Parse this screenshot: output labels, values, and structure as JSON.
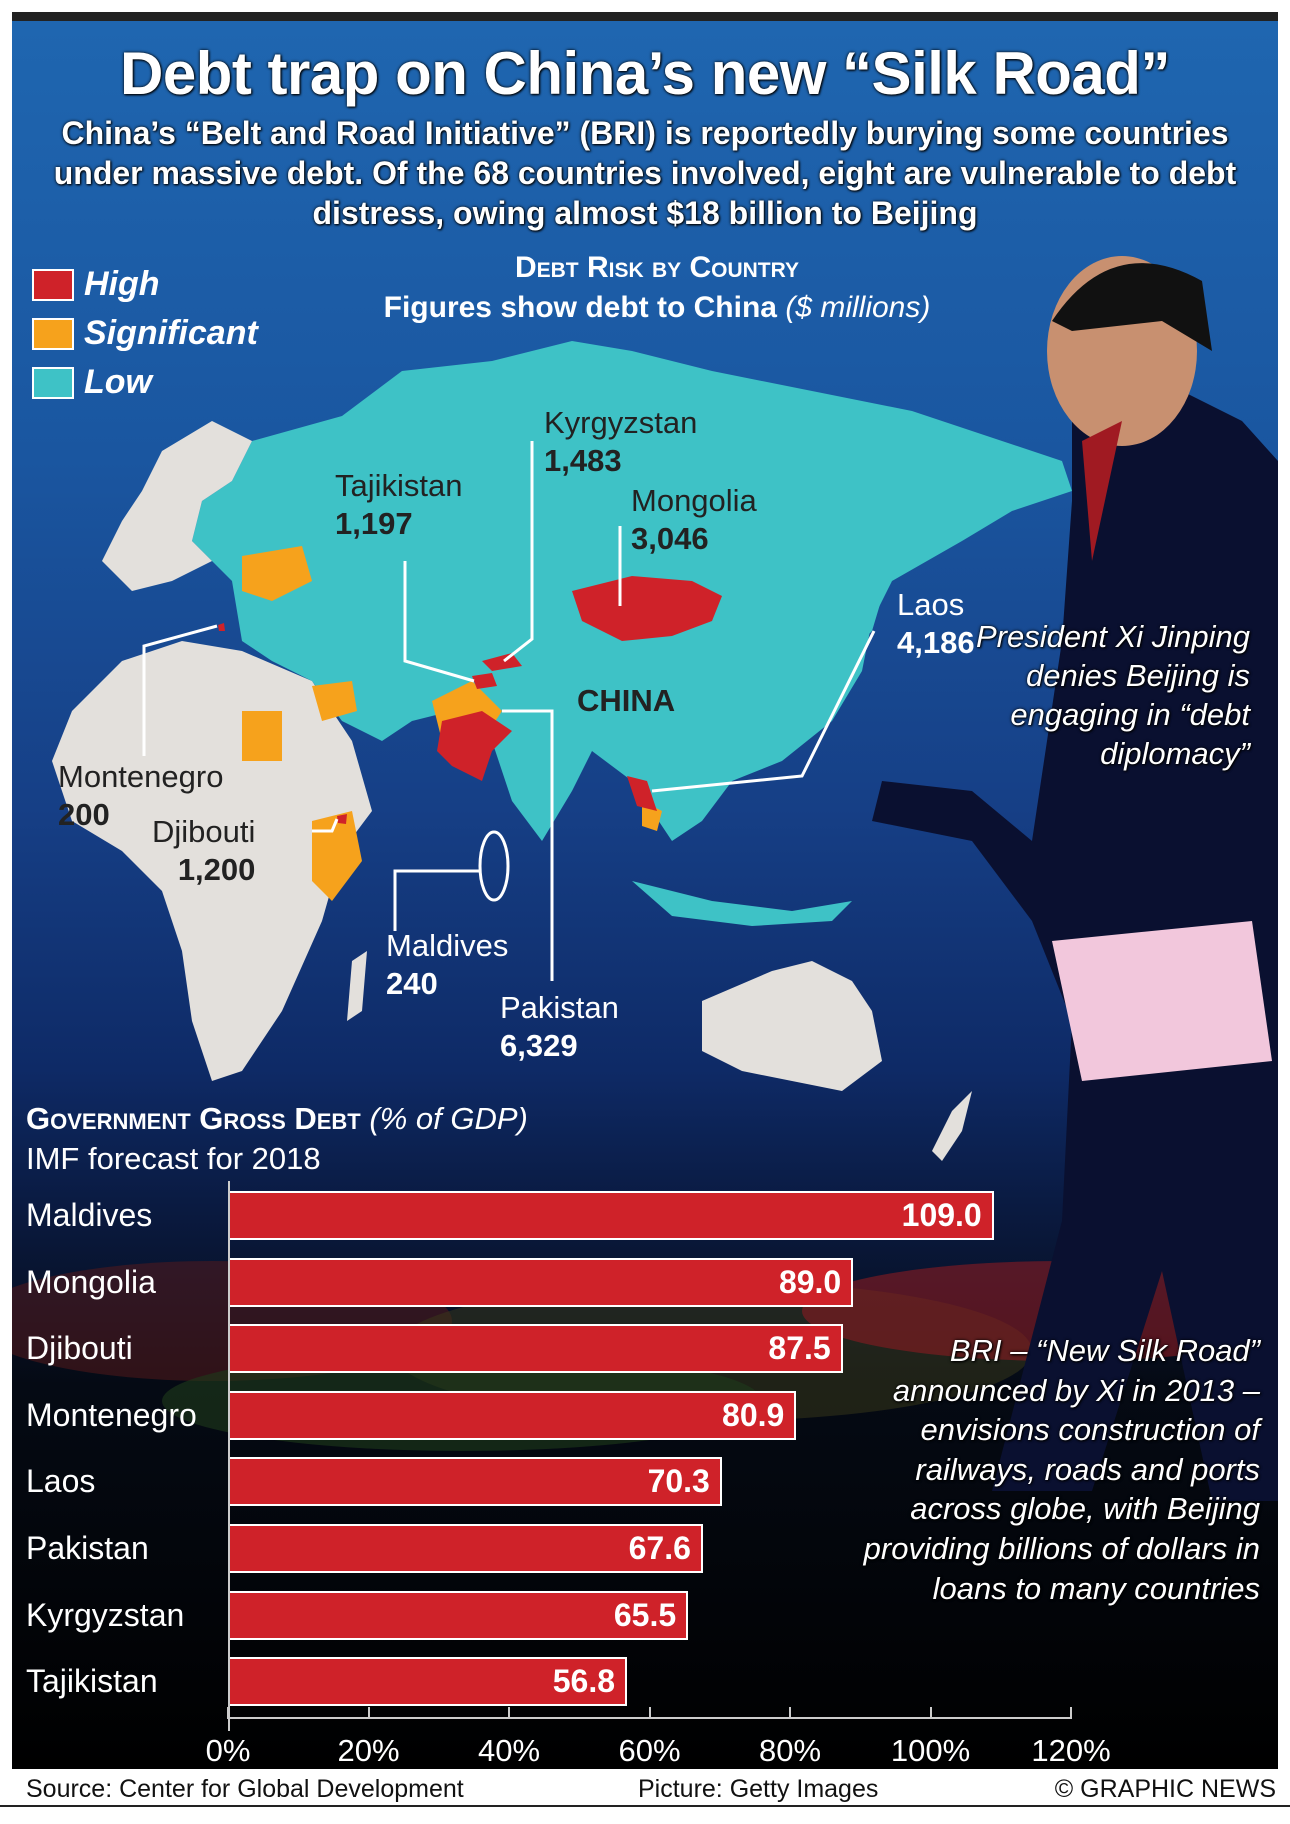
{
  "header": {
    "title": "Debt trap on China’s new “Silk Road”",
    "subtitle": "China’s “Belt and Road Initiative” (BRI) is reportedly burying some countries under massive debt. Of the 68 countries involved, eight are vulnerable to debt distress, owing almost $18 billion to Beijing"
  },
  "legend": [
    {
      "label": "High",
      "color": "#cf2229"
    },
    {
      "label": "Significant",
      "color": "#f6a21c"
    },
    {
      "label": "Low",
      "color": "#3ec2c6"
    }
  ],
  "map": {
    "title": "Debt Risk by Country",
    "subtitle": "Figures show debt to China",
    "unit": "($ millions)",
    "china_label": "CHINA",
    "countries": [
      {
        "name": "Kyrgyzstan",
        "value": "1,483",
        "risk": "High"
      },
      {
        "name": "Tajikistan",
        "value": "1,197",
        "risk": "High"
      },
      {
        "name": "Mongolia",
        "value": "3,046",
        "risk": "High"
      },
      {
        "name": "Laos",
        "value": "4,186",
        "risk": "High"
      },
      {
        "name": "Montenegro",
        "value": "200",
        "risk": "High"
      },
      {
        "name": "Djibouti",
        "value": "1,200",
        "risk": "High"
      },
      {
        "name": "Maldives",
        "value": "240",
        "risk": "High"
      },
      {
        "name": "Pakistan",
        "value": "6,329",
        "risk": "High"
      }
    ]
  },
  "photo_caption": "President Xi Jinping denies Beijing is engaging in “debt diplomacy”",
  "bri_note": "BRI – “New Silk Road” announced by Xi in 2013 – envisions construction of railways, roads and ports across globe, with Beijing providing billions of dollars in loans to many countries",
  "chart_data": {
    "type": "bar",
    "orientation": "horizontal",
    "title": "Government Gross Debt",
    "title_unit": "(% of GDP)",
    "subtitle": "IMF forecast for 2018",
    "categories": [
      "Maldives",
      "Mongolia",
      "Djibouti",
      "Montenegro",
      "Laos",
      "Pakistan",
      "Kyrgyzstan",
      "Tajikistan"
    ],
    "values": [
      109.0,
      89.0,
      87.5,
      80.9,
      70.3,
      67.6,
      65.5,
      56.8
    ],
    "value_labels": [
      "109.0",
      "89.0",
      "87.5",
      "80.9",
      "70.3",
      "67.6",
      "65.5",
      "56.8"
    ],
    "xlim": [
      0,
      120
    ],
    "ticks": [
      "0%",
      "20%",
      "40%",
      "60%",
      "80%",
      "100%",
      "120%"
    ],
    "bar_color": "#cf2229",
    "grid": false
  },
  "footer": {
    "source": "Source: Center for Global Development",
    "picture": "Picture: Getty Images",
    "credit": "© GRAPHIC NEWS"
  }
}
